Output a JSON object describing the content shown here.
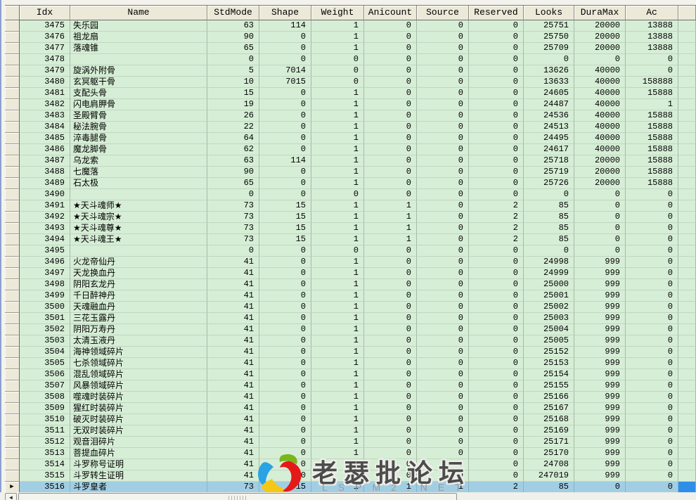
{
  "grid": {
    "columns": [
      {
        "key": "idx",
        "label": "Idx"
      },
      {
        "key": "name",
        "label": "Name"
      },
      {
        "key": "stdmode",
        "label": "StdMode"
      },
      {
        "key": "shape",
        "label": "Shape"
      },
      {
        "key": "weight",
        "label": "Weight"
      },
      {
        "key": "anicount",
        "label": "Anicount"
      },
      {
        "key": "source",
        "label": "Source"
      },
      {
        "key": "reserved",
        "label": "Reserved"
      },
      {
        "key": "looks",
        "label": "Looks"
      },
      {
        "key": "duramax",
        "label": "DuraMax"
      },
      {
        "key": "ac",
        "label": "Ac"
      },
      {
        "key": "extra",
        "label": ""
      }
    ],
    "selected_idx": "3516",
    "rows": [
      [
        "3475",
        "失乐园",
        "63",
        "114",
        "1",
        "0",
        "0",
        "0",
        "25751",
        "20000",
        "13888"
      ],
      [
        "3476",
        "祖龙扇",
        "90",
        "0",
        "1",
        "0",
        "0",
        "0",
        "25750",
        "20000",
        "13888"
      ],
      [
        "3477",
        "落魂锥",
        "65",
        "0",
        "1",
        "0",
        "0",
        "0",
        "25709",
        "20000",
        "13888"
      ],
      [
        "3478",
        "",
        "0",
        "0",
        "0",
        "0",
        "0",
        "0",
        "0",
        "0",
        "0"
      ],
      [
        "3479",
        "旋涡外附骨",
        "5",
        "7014",
        "0",
        "0",
        "0",
        "0",
        "13626",
        "40000",
        "0"
      ],
      [
        "3480",
        "玄冥躯干骨",
        "10",
        "7015",
        "0",
        "0",
        "0",
        "0",
        "13633",
        "40000",
        "158888"
      ],
      [
        "3481",
        "支配头骨",
        "15",
        "0",
        "1",
        "0",
        "0",
        "0",
        "24605",
        "40000",
        "15888"
      ],
      [
        "3482",
        "闪电肩胛骨",
        "19",
        "0",
        "1",
        "0",
        "0",
        "0",
        "24487",
        "40000",
        "1"
      ],
      [
        "3483",
        "圣殿臂骨",
        "26",
        "0",
        "1",
        "0",
        "0",
        "0",
        "24536",
        "40000",
        "15888"
      ],
      [
        "3484",
        "秘法腕骨",
        "22",
        "0",
        "1",
        "0",
        "0",
        "0",
        "24513",
        "40000",
        "15888"
      ],
      [
        "3485",
        "淬毒腿骨",
        "64",
        "0",
        "1",
        "0",
        "0",
        "0",
        "24495",
        "40000",
        "15888"
      ],
      [
        "3486",
        "魔龙脚骨",
        "62",
        "0",
        "1",
        "0",
        "0",
        "0",
        "24617",
        "40000",
        "15888"
      ],
      [
        "3487",
        "乌龙索",
        "63",
        "114",
        "1",
        "0",
        "0",
        "0",
        "25718",
        "20000",
        "15888"
      ],
      [
        "3488",
        "七魔落",
        "90",
        "0",
        "1",
        "0",
        "0",
        "0",
        "25719",
        "20000",
        "15888"
      ],
      [
        "3489",
        "石太极",
        "65",
        "0",
        "1",
        "0",
        "0",
        "0",
        "25726",
        "20000",
        "15888"
      ],
      [
        "3490",
        "",
        "0",
        "0",
        "0",
        "0",
        "0",
        "0",
        "0",
        "0",
        "0"
      ],
      [
        "3491",
        "★天斗魂师★",
        "73",
        "15",
        "1",
        "1",
        "0",
        "2",
        "85",
        "0",
        "0"
      ],
      [
        "3492",
        "★天斗魂宗★",
        "73",
        "15",
        "1",
        "1",
        "0",
        "2",
        "85",
        "0",
        "0"
      ],
      [
        "3493",
        "★天斗魂尊★",
        "73",
        "15",
        "1",
        "1",
        "0",
        "2",
        "85",
        "0",
        "0"
      ],
      [
        "3494",
        "★天斗魂王★",
        "73",
        "15",
        "1",
        "1",
        "0",
        "2",
        "85",
        "0",
        "0"
      ],
      [
        "3495",
        "",
        "0",
        "0",
        "0",
        "0",
        "0",
        "0",
        "0",
        "0",
        "0"
      ],
      [
        "3496",
        "火龙帝仙丹",
        "41",
        "0",
        "1",
        "0",
        "0",
        "0",
        "24998",
        "999",
        "0"
      ],
      [
        "3497",
        "天龙换血丹",
        "41",
        "0",
        "1",
        "0",
        "0",
        "0",
        "24999",
        "999",
        "0"
      ],
      [
        "3498",
        "阴阳玄龙丹",
        "41",
        "0",
        "1",
        "0",
        "0",
        "0",
        "25000",
        "999",
        "0"
      ],
      [
        "3499",
        "千日醉神丹",
        "41",
        "0",
        "1",
        "0",
        "0",
        "0",
        "25001",
        "999",
        "0"
      ],
      [
        "3500",
        "天魂融血丹",
        "41",
        "0",
        "1",
        "0",
        "0",
        "0",
        "25002",
        "999",
        "0"
      ],
      [
        "3501",
        "三花玉露丹",
        "41",
        "0",
        "1",
        "0",
        "0",
        "0",
        "25003",
        "999",
        "0"
      ],
      [
        "3502",
        "阴阳万寿丹",
        "41",
        "0",
        "1",
        "0",
        "0",
        "0",
        "25004",
        "999",
        "0"
      ],
      [
        "3503",
        "太清玉液丹",
        "41",
        "0",
        "1",
        "0",
        "0",
        "0",
        "25005",
        "999",
        "0"
      ],
      [
        "3504",
        "海神领域碎片",
        "41",
        "0",
        "1",
        "0",
        "0",
        "0",
        "25152",
        "999",
        "0"
      ],
      [
        "3505",
        "七杀领域碎片",
        "41",
        "0",
        "1",
        "0",
        "0",
        "0",
        "25153",
        "999",
        "0"
      ],
      [
        "3506",
        "混乱领域碎片",
        "41",
        "0",
        "1",
        "0",
        "0",
        "0",
        "25154",
        "999",
        "0"
      ],
      [
        "3507",
        "风暴领域碎片",
        "41",
        "0",
        "1",
        "0",
        "0",
        "0",
        "25155",
        "999",
        "0"
      ],
      [
        "3508",
        "噬魂时装碎片",
        "41",
        "0",
        "1",
        "0",
        "0",
        "0",
        "25166",
        "999",
        "0"
      ],
      [
        "3509",
        "猩红时装碎片",
        "41",
        "0",
        "1",
        "0",
        "0",
        "0",
        "25167",
        "999",
        "0"
      ],
      [
        "3510",
        "破灭时装碎片",
        "41",
        "0",
        "1",
        "0",
        "0",
        "0",
        "25168",
        "999",
        "0"
      ],
      [
        "3511",
        "无双时装碎片",
        "41",
        "0",
        "1",
        "0",
        "0",
        "0",
        "25169",
        "999",
        "0"
      ],
      [
        "3512",
        "观音泪碎片",
        "41",
        "0",
        "1",
        "0",
        "0",
        "0",
        "25171",
        "999",
        "0"
      ],
      [
        "3513",
        "菩提血碎片",
        "41",
        "0",
        "1",
        "0",
        "0",
        "0",
        "25170",
        "999",
        "0"
      ],
      [
        "3514",
        "斗罗称号证明",
        "41",
        "0",
        "1",
        "0",
        "0",
        "0",
        "24708",
        "999",
        "0"
      ],
      [
        "3515",
        "斗罗转生证明",
        "41",
        "0",
        "1",
        "0",
        "0",
        "0",
        "247019",
        "999",
        "0"
      ],
      [
        "3516",
        "斗罗皇者",
        "73",
        "15",
        "1",
        "1",
        "1",
        "2",
        "85",
        "0",
        "0"
      ]
    ]
  },
  "icons": {
    "selected_row_marker": "▶",
    "scroll_left_arrow": "◄"
  },
  "colors": {
    "row_bg": "#d6eed6",
    "selected_row_bg": "#a2cee4",
    "focused_cell_bg": "#2f8fe8",
    "header_bg": "#ece9d8"
  },
  "watermark": {
    "title": "老瑟批论坛",
    "subtitle": "LSPM2.NET"
  }
}
